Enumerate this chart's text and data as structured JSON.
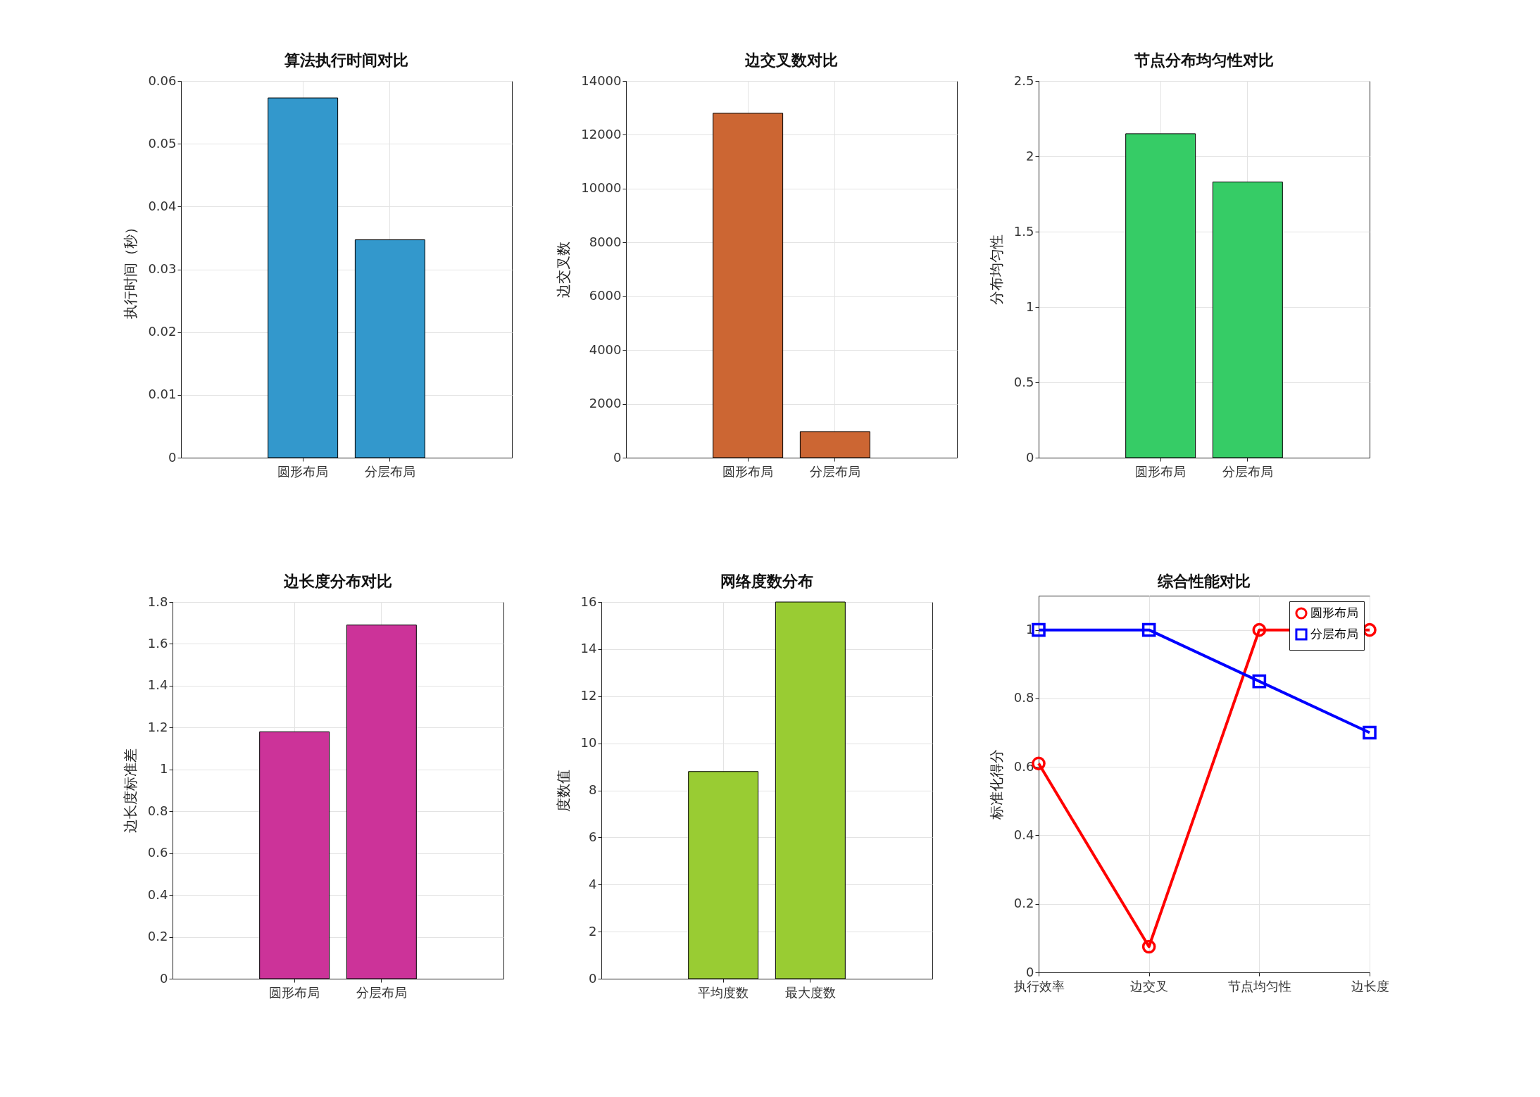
{
  "chart_data": [
    {
      "type": "bar",
      "title": "算法执行时间对比",
      "ylabel": "执行时间（秒）",
      "categories": [
        "圆形布局",
        "分层布局"
      ],
      "values": [
        0.0573,
        0.0347
      ],
      "color": "#3398cc",
      "ylim": [
        0,
        0.06
      ],
      "yticks": [
        0,
        0.01,
        0.02,
        0.03,
        0.04,
        0.05,
        0.06
      ],
      "grid": true
    },
    {
      "type": "bar",
      "title": "边交叉数对比",
      "ylabel": "边交叉数",
      "categories": [
        "圆形布局",
        "分层布局"
      ],
      "values": [
        12800,
        970
      ],
      "color": "#cc6633",
      "ylim": [
        0,
        14000
      ],
      "yticks": [
        0,
        2000,
        4000,
        6000,
        8000,
        10000,
        12000,
        14000
      ],
      "grid": true
    },
    {
      "type": "bar",
      "title": "节点分布均匀性对比",
      "ylabel": "分布均匀性",
      "categories": [
        "圆形布局",
        "分层布局"
      ],
      "values": [
        2.15,
        1.83
      ],
      "color": "#36cc66",
      "ylim": [
        0,
        2.5
      ],
      "yticks": [
        0,
        0.5,
        1,
        1.5,
        2,
        2.5
      ],
      "grid": true
    },
    {
      "type": "bar",
      "title": "边长度分布对比",
      "ylabel": "边长度标准差",
      "categories": [
        "圆形布局",
        "分层布局"
      ],
      "values": [
        1.18,
        1.69
      ],
      "color": "#cc3399",
      "ylim": [
        0,
        1.8
      ],
      "yticks": [
        0,
        0.2,
        0.4,
        0.6,
        0.8,
        1,
        1.2,
        1.4,
        1.6,
        1.8
      ],
      "grid": true
    },
    {
      "type": "bar",
      "title": "网络度数分布",
      "ylabel": "度数值",
      "categories": [
        "平均度数",
        "最大度数"
      ],
      "values": [
        8.8,
        16
      ],
      "color": "#99cc33",
      "ylim": [
        0,
        16
      ],
      "yticks": [
        0,
        2,
        4,
        6,
        8,
        10,
        12,
        14,
        16
      ],
      "grid": true
    },
    {
      "type": "line",
      "title": "综合性能对比",
      "ylabel": "标准化得分",
      "categories": [
        "执行效率",
        "边交叉",
        "节点均匀性",
        "边长度"
      ],
      "ylim": [
        0,
        1.1
      ],
      "yticks": [
        0,
        0.2,
        0.4,
        0.6,
        0.8,
        1
      ],
      "grid": true,
      "legend": "top right",
      "line_style": "solid",
      "series": [
        {
          "name": "圆形布局",
          "color": "#ff0000",
          "marker": "circle",
          "values": [
            0.61,
            0.075,
            1,
            1
          ]
        },
        {
          "name": "分层布局",
          "color": "#0000ff",
          "marker": "square",
          "values": [
            1,
            1,
            0.85,
            0.7
          ]
        }
      ]
    }
  ]
}
